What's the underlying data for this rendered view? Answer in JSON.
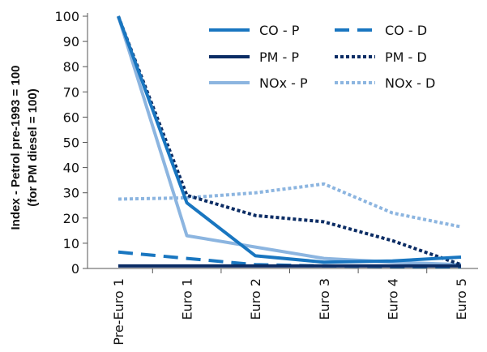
{
  "chart_data": {
    "type": "line",
    "categories": [
      "Pre-Euro 1",
      "Euro 1",
      "Euro 2",
      "Euro 3",
      "Euro 4",
      "Euro 5"
    ],
    "ylabel_line1": "Index - Petrol pre-1993 = 100",
    "ylabel_line2": "(for PM diesel = 100)",
    "ylim": [
      0,
      100
    ],
    "yticks": [
      0,
      10,
      20,
      30,
      40,
      50,
      60,
      70,
      80,
      90,
      100
    ],
    "grid": false,
    "legend_position": "top-right",
    "series": [
      {
        "name": "CO - P",
        "color": "#1976c0",
        "style": "solid",
        "values": [
          100,
          26,
          5,
          2.5,
          3,
          4.5
        ]
      },
      {
        "name": "CO - D",
        "color": "#1976c0",
        "style": "dashed",
        "values": [
          6.5,
          4,
          1.5,
          1,
          0.8,
          0.7
        ]
      },
      {
        "name": "PM - P",
        "color": "#0b2c64",
        "style": "solid",
        "values": [
          1,
          1,
          1,
          1,
          1,
          1
        ]
      },
      {
        "name": "PM - D",
        "color": "#0b2c64",
        "style": "dotted",
        "values": [
          100,
          29,
          21,
          18.5,
          11,
          1.5
        ]
      },
      {
        "name": "NOx - P",
        "color": "#8cb5e0",
        "style": "solid",
        "values": [
          100,
          13,
          8.5,
          4,
          2.5,
          1.5
        ]
      },
      {
        "name": "NOx - D",
        "color": "#8cb5e0",
        "style": "dotted",
        "values": [
          27.5,
          28,
          30,
          33.5,
          22,
          16.5
        ]
      }
    ]
  }
}
